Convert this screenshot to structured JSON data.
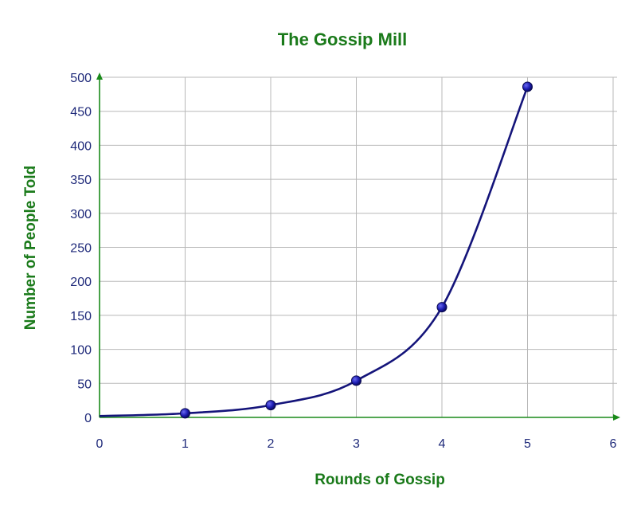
{
  "chart_data": {
    "type": "line",
    "title": "The Gossip Mill",
    "xlabel": "Rounds of Gossip",
    "ylabel": "Number of People Told",
    "xlim": [
      0,
      6
    ],
    "ylim": [
      0,
      500
    ],
    "x_ticks": [
      0,
      1,
      2,
      3,
      4,
      5,
      6
    ],
    "y_ticks": [
      0,
      50,
      100,
      150,
      200,
      250,
      300,
      350,
      400,
      450,
      500
    ],
    "grid": true,
    "curve_start": [
      0,
      2
    ],
    "series": [
      {
        "x": [
          1,
          2,
          3,
          4,
          5
        ],
        "y": [
          6,
          18,
          54,
          162,
          486
        ]
      }
    ],
    "colors": {
      "title": "#1a7a1a",
      "axis": "#1a8a1a",
      "ticks": "#1f2a7a",
      "line": "#14147a",
      "marker": "#1e1eb4"
    }
  }
}
